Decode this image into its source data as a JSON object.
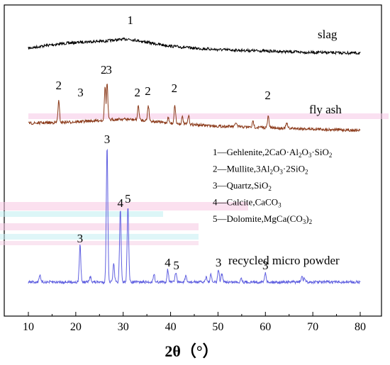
{
  "chart_data": {
    "type": "line",
    "xlabel": "2θ（°）",
    "ylabel": "",
    "xlim": [
      5,
      82
    ],
    "x_ticks": [
      10,
      20,
      30,
      40,
      50,
      60,
      70,
      80
    ],
    "grid": false,
    "series": [
      {
        "name": "slag",
        "color": "#000000",
        "trace": [
          [
            10,
            18
          ],
          [
            14,
            14
          ],
          [
            18,
            11
          ],
          [
            22,
            9
          ],
          [
            26,
            8
          ],
          [
            29,
            6
          ],
          [
            31,
            5
          ],
          [
            33,
            7
          ],
          [
            36,
            11
          ],
          [
            40,
            15
          ],
          [
            45,
            18
          ],
          [
            50,
            20
          ],
          [
            60,
            22
          ],
          [
            70,
            24
          ],
          [
            80,
            25
          ]
        ],
        "peaks": [],
        "noise": 2
      },
      {
        "name": "fly ash",
        "color": "#8B3A1A",
        "trace": [
          [
            10,
            14
          ],
          [
            20,
            12
          ],
          [
            25,
            10
          ],
          [
            30,
            8
          ],
          [
            35,
            10
          ],
          [
            40,
            14
          ],
          [
            50,
            18
          ],
          [
            60,
            20
          ],
          [
            70,
            22
          ],
          [
            80,
            24
          ]
        ],
        "peaks": [
          [
            16.4,
            30
          ],
          [
            26.2,
            48
          ],
          [
            26.6,
            52
          ],
          [
            33.2,
            20
          ],
          [
            35.3,
            22
          ],
          [
            39.5,
            8
          ],
          [
            40.9,
            26
          ],
          [
            42.5,
            10
          ],
          [
            43.8,
            12
          ],
          [
            53.8,
            6
          ],
          [
            57.4,
            8
          ],
          [
            60.6,
            16
          ],
          [
            64.5,
            7
          ]
        ],
        "noise": 2
      },
      {
        "name": "recycled micro powder",
        "color": "#6060E0",
        "trace": [
          [
            10,
            0
          ],
          [
            20,
            0
          ],
          [
            30,
            0
          ],
          [
            40,
            0
          ],
          [
            50,
            0
          ],
          [
            60,
            0
          ],
          [
            70,
            0
          ],
          [
            80,
            0
          ]
        ],
        "peaks": [
          [
            12.4,
            10
          ],
          [
            20.9,
            52
          ],
          [
            23.1,
            8
          ],
          [
            26.6,
            192
          ],
          [
            28.0,
            25
          ],
          [
            29.4,
            102
          ],
          [
            31.0,
            108
          ],
          [
            36.5,
            12
          ],
          [
            39.4,
            18
          ],
          [
            41.1,
            14
          ],
          [
            43.2,
            8
          ],
          [
            47.5,
            8
          ],
          [
            48.5,
            10
          ],
          [
            50.1,
            18
          ],
          [
            50.8,
            12
          ],
          [
            54.9,
            6
          ],
          [
            60.0,
            14
          ],
          [
            67.7,
            8
          ],
          [
            68.2,
            6
          ]
        ],
        "noise": 2
      }
    ],
    "annotations": [
      {
        "text": "1",
        "x": 31.5,
        "series": "slag"
      },
      {
        "text": "2",
        "x": 16.4,
        "series": "fly ash"
      },
      {
        "text": "3",
        "x": 21.0,
        "series": "fly ash"
      },
      {
        "text": "2",
        "x": 25.9,
        "series": "fly ash"
      },
      {
        "text": "3",
        "x": 27.0,
        "series": "fly ash"
      },
      {
        "text": "2",
        "x": 33.0,
        "series": "fly ash"
      },
      {
        "text": "2",
        "x": 35.2,
        "series": "fly ash"
      },
      {
        "text": "2",
        "x": 40.8,
        "series": "fly ash"
      },
      {
        "text": "2",
        "x": 60.5,
        "series": "fly ash"
      },
      {
        "text": "3",
        "x": 26.6,
        "series": "recycled micro powder"
      },
      {
        "text": "4",
        "x": 29.4,
        "series": "recycled micro powder"
      },
      {
        "text": "5",
        "x": 31.0,
        "series": "recycled micro powder"
      },
      {
        "text": "3",
        "x": 20.9,
        "series": "recycled micro powder"
      },
      {
        "text": "4",
        "x": 39.4,
        "series": "recycled micro powder"
      },
      {
        "text": "5",
        "x": 41.2,
        "series": "recycled micro powder"
      },
      {
        "text": "3",
        "x": 50.1,
        "series": "recycled micro powder"
      },
      {
        "text": "3",
        "x": 60.0,
        "series": "recycled micro powder"
      }
    ],
    "legend_placement": "center-right",
    "legend": [
      {
        "num": "1",
        "text": "Gehlenite,2CaO·Al",
        "parts": [
          [
            "Gehlenite,2CaO·Al",
            ""
          ],
          [
            "2",
            "sub"
          ],
          [
            "O",
            ""
          ],
          [
            "3",
            "sub"
          ],
          [
            "·SiO",
            ""
          ],
          [
            "2",
            "sub"
          ]
        ]
      },
      {
        "num": "2",
        "text": "Mullite,3Al2O3·2SiO2",
        "parts": [
          [
            "Mullite,3Al",
            ""
          ],
          [
            "2",
            "sub"
          ],
          [
            "O",
            ""
          ],
          [
            "3",
            "sub"
          ],
          [
            "·2SiO",
            ""
          ],
          [
            "2",
            "sub"
          ]
        ]
      },
      {
        "num": "3",
        "text": "Quartz,SiO2",
        "parts": [
          [
            "Quartz,SiO",
            ""
          ],
          [
            "2",
            "sub"
          ]
        ]
      },
      {
        "num": "4",
        "text": "Calcite,CaCO3",
        "parts": [
          [
            "Calcite,CaCO",
            ""
          ],
          [
            "3",
            "sub"
          ]
        ]
      },
      {
        "num": "5",
        "text": "Dolomite,MgCa(CO3)2",
        "parts": [
          [
            "Dolomite,MgCa(CO",
            ""
          ],
          [
            "3",
            "sub"
          ],
          [
            ")",
            ""
          ],
          [
            "2",
            "sub"
          ]
        ]
      }
    ],
    "legend_dash": "—"
  }
}
